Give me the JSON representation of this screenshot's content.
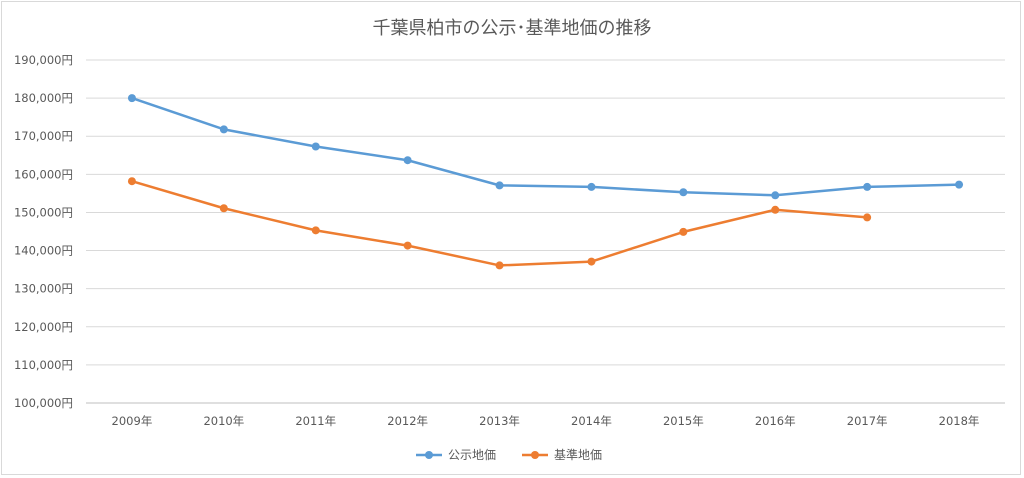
{
  "chart_data": {
    "type": "line",
    "title": "千葉県柏市の公示･基準地価の推移",
    "categories": [
      "2009年",
      "2010年",
      "2011年",
      "2012年",
      "2013年",
      "2014年",
      "2015年",
      "2016年",
      "2017年",
      "2018年"
    ],
    "y_ticks": [
      "100,000円",
      "110,000円",
      "120,000円",
      "130,000円",
      "140,000円",
      "150,000円",
      "160,000円",
      "170,000円",
      "180,000円",
      "190,000円"
    ],
    "ylim": [
      100000,
      190000
    ],
    "grid": true,
    "legend_position": "bottom",
    "series": [
      {
        "name": "公示地価",
        "color": "#5b9bd5",
        "values": [
          180000,
          171800,
          167300,
          163700,
          157100,
          156700,
          155300,
          154500,
          156700,
          157300
        ]
      },
      {
        "name": "基準地価",
        "color": "#ed7d31",
        "values": [
          158200,
          151100,
          145300,
          141300,
          136100,
          137100,
          144900,
          150700,
          148700,
          null
        ]
      }
    ]
  }
}
